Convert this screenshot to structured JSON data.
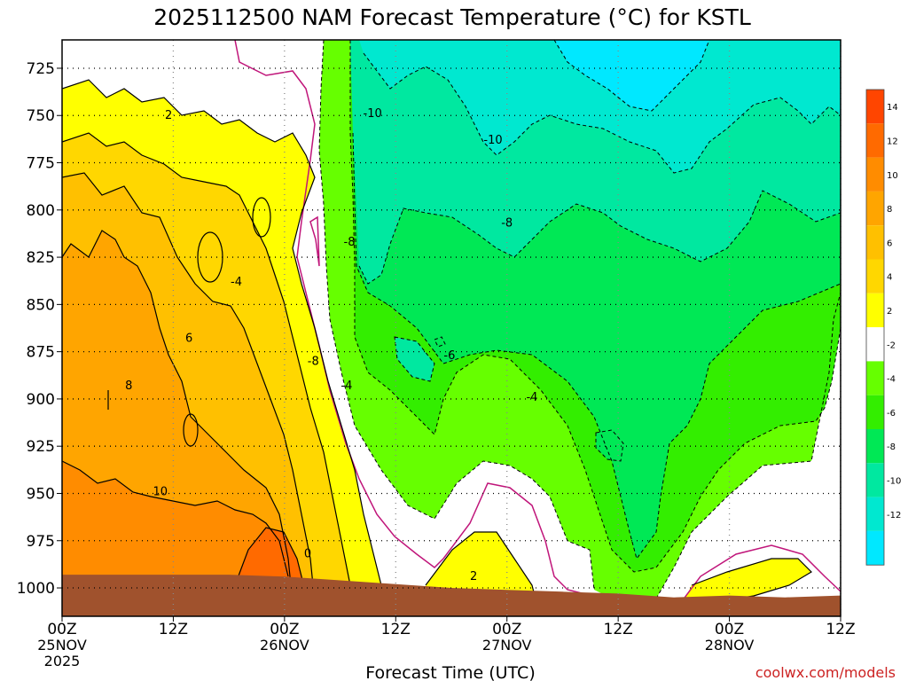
{
  "colors": {
    "ground": "#a0522d",
    "warm_neg2_2": "#ffffff",
    "pos2_4": "#ffff00",
    "pos4_6": "#ffd700",
    "pos6_8": "#ffc000",
    "pos8_10": "#ffa500",
    "pos10_12": "#ff8c00",
    "pos12_14": "#ff6a00",
    "pos14_16": "#ff4500",
    "neg4_2": "#66ff00",
    "neg6_4": "#33ee00",
    "neg8_6": "#00e855",
    "neg10_8": "#00e8a0",
    "neg12_10": "#00e8d0",
    "neg14_12": "#00e8ff",
    "zero_line": "#c0157a",
    "credit": "#cc2222"
  },
  "chart_data": {
    "type": "heatmap",
    "title": "2025112500 NAM Forecast Temperature (°C) for KSTL",
    "xlabel": "Forecast Time (UTC)",
    "ylabel": "",
    "credit": "coolwx.com/models",
    "x_ticks": [
      {
        "hour": 0,
        "label": "00Z",
        "date": "25NOV",
        "year": "2025"
      },
      {
        "hour": 12,
        "label": "12Z",
        "date": "",
        "year": ""
      },
      {
        "hour": 24,
        "label": "00Z",
        "date": "26NOV",
        "year": ""
      },
      {
        "hour": 36,
        "label": "12Z",
        "date": "",
        "year": ""
      },
      {
        "hour": 48,
        "label": "00Z",
        "date": "27NOV",
        "year": ""
      },
      {
        "hour": 60,
        "label": "12Z",
        "date": "",
        "year": ""
      },
      {
        "hour": 72,
        "label": "00Z",
        "date": "28NOV",
        "year": ""
      },
      {
        "hour": 84,
        "label": "12Z",
        "date": "",
        "year": ""
      }
    ],
    "xlim": [
      0,
      84
    ],
    "y_ticks": [
      725,
      750,
      775,
      800,
      825,
      850,
      875,
      900,
      925,
      950,
      975,
      1000
    ],
    "ylim": [
      1015,
      710
    ],
    "grid": true,
    "colorbar": {
      "ticks": [
        14,
        12,
        10,
        8,
        6,
        4,
        2,
        -2,
        -4,
        -6,
        -8,
        -10,
        -12
      ],
      "bins": [
        {
          "lo": 14,
          "hi": 16,
          "key": "pos14_16"
        },
        {
          "lo": 12,
          "hi": 14,
          "key": "pos12_14"
        },
        {
          "lo": 10,
          "hi": 12,
          "key": "pos10_12"
        },
        {
          "lo": 8,
          "hi": 10,
          "key": "pos8_10"
        },
        {
          "lo": 6,
          "hi": 8,
          "key": "pos6_8"
        },
        {
          "lo": 4,
          "hi": 6,
          "key": "pos4_6"
        },
        {
          "lo": 2,
          "hi": 4,
          "key": "pos2_4"
        },
        {
          "lo": -2,
          "hi": 2,
          "key": "warm_neg2_2"
        },
        {
          "lo": -4,
          "hi": -2,
          "key": "neg4_2"
        },
        {
          "lo": -6,
          "hi": -4,
          "key": "neg6_4"
        },
        {
          "lo": -8,
          "hi": -6,
          "key": "neg8_6"
        },
        {
          "lo": -10,
          "hi": -8,
          "key": "neg10_8"
        },
        {
          "lo": -12,
          "hi": -10,
          "key": "neg12_10"
        },
        {
          "lo": -14,
          "hi": -12,
          "key": "neg14_12"
        }
      ]
    },
    "ground_pressure": [
      [
        0,
        993
      ],
      [
        6,
        993
      ],
      [
        12,
        993
      ],
      [
        18,
        993
      ],
      [
        24,
        994
      ],
      [
        30,
        996
      ],
      [
        36,
        998
      ],
      [
        42,
        1000
      ],
      [
        48,
        1001
      ],
      [
        54,
        1002
      ],
      [
        60,
        1003
      ],
      [
        66,
        1005
      ],
      [
        72,
        1004
      ],
      [
        78,
        1005
      ],
      [
        84,
        1004
      ]
    ],
    "contour_labels": [
      {
        "text": "2",
        "hour": 11.5,
        "p": 750
      },
      {
        "text": "6",
        "hour": 13.7,
        "p": 868
      },
      {
        "text": "8",
        "hour": 7.2,
        "p": 893
      },
      {
        "text": "10",
        "hour": 10.6,
        "p": 949
      },
      {
        "text": "-4",
        "hour": 18.8,
        "p": 838
      },
      {
        "text": "0",
        "hour": 26.5,
        "p": 982
      },
      {
        "text": "-8",
        "hour": 27.1,
        "p": 880
      },
      {
        "text": "-8",
        "hour": 31.0,
        "p": 817
      },
      {
        "text": "-4",
        "hour": 30.7,
        "p": 893
      },
      {
        "text": "-10",
        "hour": 33.5,
        "p": 749
      },
      {
        "text": "-6",
        "hour": 41.8,
        "p": 877
      },
      {
        "text": "-10",
        "hour": 46.5,
        "p": 763
      },
      {
        "text": "-8",
        "hour": 48.0,
        "p": 807
      },
      {
        "text": "-4",
        "hour": 50.7,
        "p": 899
      },
      {
        "text": "2",
        "hour": 44.4,
        "p": 994
      }
    ]
  }
}
